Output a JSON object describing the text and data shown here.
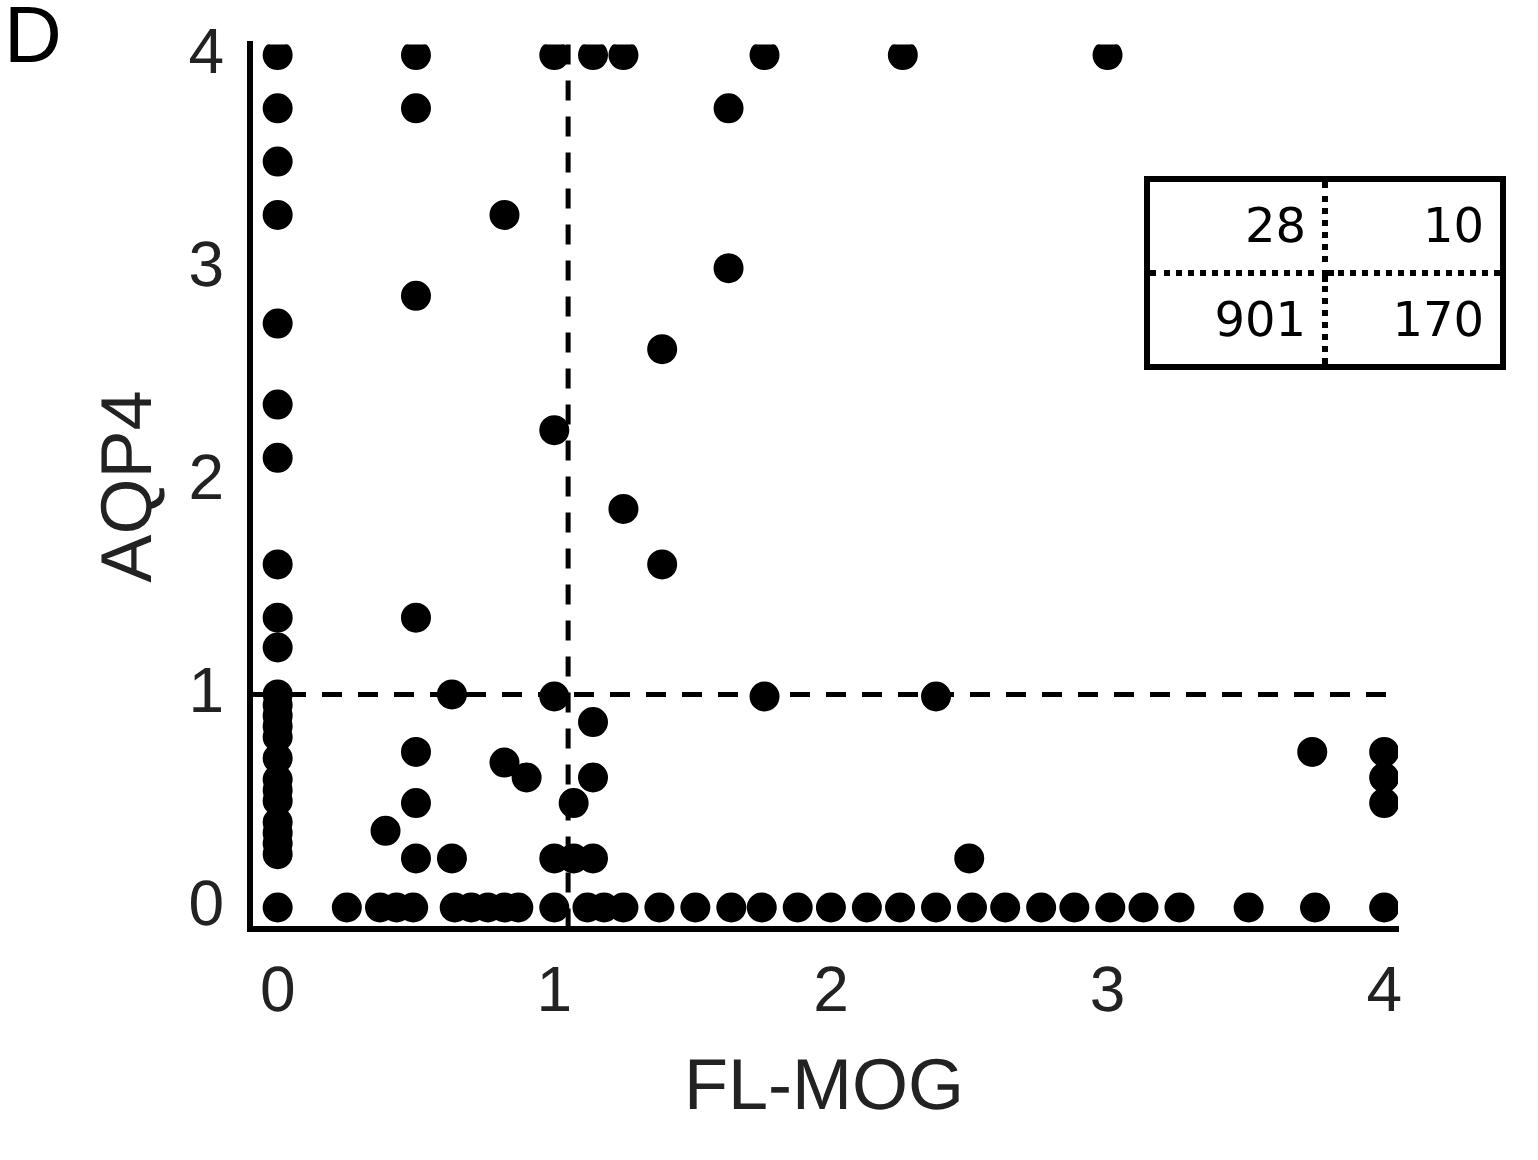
{
  "chart_data": {
    "type": "scatter",
    "xlabel": "FL-MOG",
    "ylabel": "AQP4",
    "annotations": [
      "D",
      "28",
      "10",
      "901",
      "170"
    ],
    "xlim": [
      -0.1,
      4.05
    ],
    "ylim": [
      -0.1,
      4.05
    ],
    "xticks": [
      0,
      1,
      2,
      3,
      4
    ],
    "yticks": [
      0,
      1,
      2,
      3,
      4
    ],
    "grid": false,
    "legend": false,
    "marker": "circle",
    "ref_lines": [
      {
        "axis": "x",
        "value": 1.05,
        "color": "#000000",
        "line_style": "dashed"
      },
      {
        "axis": "y",
        "value": 1.0,
        "color": "#000000",
        "line_style": "dashed"
      }
    ],
    "series": [
      {
        "color": "#000000",
        "x": [
          0,
          0,
          0,
          0,
          0,
          0,
          0,
          0,
          0,
          0,
          0,
          0,
          0,
          0,
          0,
          0,
          0,
          0,
          0,
          0,
          0,
          0,
          0,
          0.5,
          0.5,
          0.5,
          0.5,
          0.5,
          0.5,
          0.5,
          0.63,
          0.39,
          0.63,
          0.82,
          0.82,
          0.9,
          1.0,
          1.14,
          1.25,
          1.76,
          2.26,
          3.0,
          1.63,
          1.63,
          1.39,
          1.0,
          1.25,
          1.39,
          1.0,
          1.76,
          1.14,
          1.14,
          1.07,
          1.0,
          1.07,
          1.14,
          2.38,
          2.5,
          3.74,
          4,
          4,
          4
        ],
        "values": [
          4,
          3.75,
          3.5,
          3.25,
          2.74,
          2.36,
          2.11,
          1.61,
          1.36,
          1.22,
          1.0,
          0.9,
          0.8,
          0.7,
          0.6,
          0.5,
          0.4,
          0.3,
          0.25,
          0.95,
          0.85,
          0.55,
          0.35,
          4,
          3.75,
          2.87,
          1.36,
          0.73,
          0.49,
          0.23,
          1.0,
          0.36,
          0.23,
          3.25,
          0.68,
          0.61,
          4,
          4,
          4,
          4,
          4,
          4,
          3.75,
          3.0,
          2.62,
          2.24,
          1.87,
          1.61,
          0.99,
          0.99,
          0.87,
          0.61,
          0.49,
          0.23,
          0.23,
          0.23,
          0.99,
          0.23,
          0.73,
          0.73,
          0.61,
          0.49
        ]
      },
      {
        "color": "#000000",
        "x": [
          0,
          0.25,
          0.37,
          0.43,
          0.49,
          0.64,
          0.7,
          0.76,
          0.82,
          0.87,
          1.0,
          1.12,
          1.18,
          1.25,
          1.38,
          1.51,
          1.64,
          1.75,
          1.88,
          2.0,
          2.13,
          2.25,
          2.38,
          2.51,
          2.63,
          2.76,
          2.88,
          3.01,
          3.13,
          3.26,
          3.51,
          3.75,
          4
        ],
        "values": [
          0,
          0,
          0,
          0,
          0,
          0,
          0,
          0,
          0,
          0,
          0,
          0,
          0,
          0,
          0,
          0,
          0,
          0,
          0,
          0,
          0,
          0,
          0,
          0,
          0,
          0,
          0,
          0,
          0,
          0,
          0,
          0,
          0
        ]
      }
    ]
  }
}
